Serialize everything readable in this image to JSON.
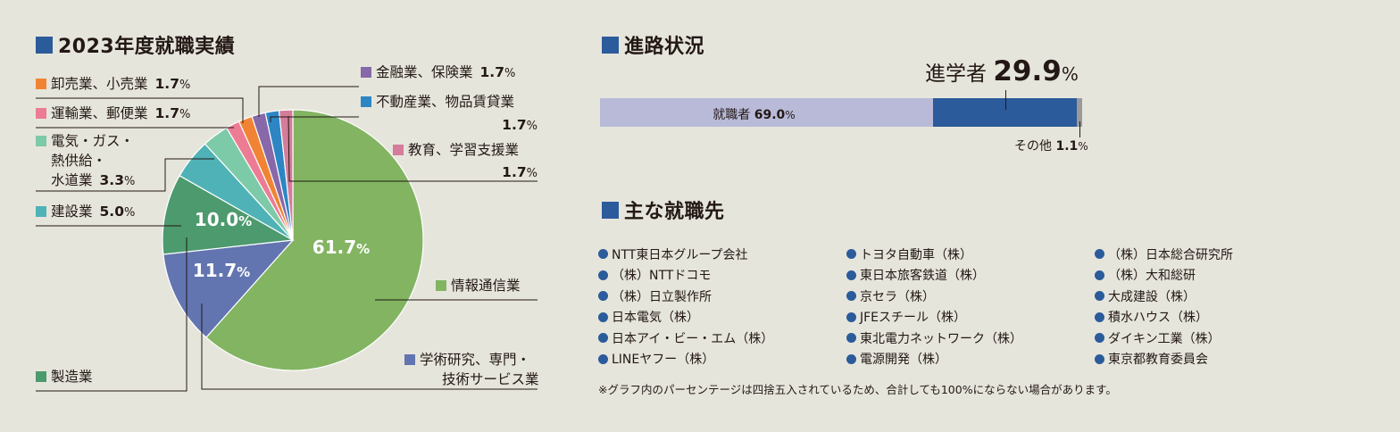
{
  "left_section": {
    "title": "2023年度就職実績",
    "accent": "#2b5b9a"
  },
  "right_section": {
    "title": "進路状況",
    "accent": "#2b5b9a"
  },
  "employers_section": {
    "title": "主な就職先",
    "accent": "#2b5b9a",
    "dot_color": "#2b5b9a",
    "columns": [
      [
        "NTT東日本グループ会社",
        "（株）NTTドコモ",
        "（株）日立製作所",
        "日本電気（株）",
        "日本アイ・ビー・エム（株）",
        "LINEヤフー（株）"
      ],
      [
        "トヨタ自動車（株）",
        "東日本旅客鉄道（株）",
        "京セラ（株）",
        "JFEスチール（株）",
        "東北電力ネットワーク（株）",
        "電源開発（株）"
      ],
      [
        "（株）日本総合研究所",
        "（株）大和総研",
        "大成建設（株）",
        "積水ハウス（株）",
        "ダイキン工業（株）",
        "東京都教育委員会"
      ]
    ],
    "note": "※グラフ内のパーセンテージは四捨五入されているため、合計しても100%にならない場合があります。"
  },
  "chart_data": [
    {
      "type": "pie",
      "title": "2023年度就職実績",
      "start": "12 o'clock, clockwise",
      "slices": [
        {
          "name": "情報通信業",
          "value": 61.7,
          "color": "#82b462",
          "label": "",
          "inside_label": "61.7",
          "unit": "%"
        },
        {
          "name": "学術研究、専門・技術サービス業",
          "value": 11.7,
          "color": "#6275b0",
          "label": "",
          "inside_label": "11.7",
          "unit": "%"
        },
        {
          "name": "製造業",
          "value": 10.0,
          "color": "#4c9a6e",
          "label": "",
          "inside_label": "10.0",
          "unit": "%"
        },
        {
          "name": "建設業",
          "value": 5.0,
          "color": "#4fb2b6",
          "label": "5.0",
          "unit": "%"
        },
        {
          "name": "電気・ガス・熱供給・水道業",
          "value": 3.3,
          "color": "#7dcaa8",
          "label": "3.3",
          "unit": "%"
        },
        {
          "name": "運輸業、郵便業",
          "value": 1.7,
          "color": "#ec7c94",
          "label": "1.7",
          "unit": "%"
        },
        {
          "name": "卸売業、小売業",
          "value": 1.7,
          "color": "#f08434",
          "label": "1.7",
          "unit": "%"
        },
        {
          "name": "金融業、保険業",
          "value": 1.7,
          "color": "#8768a8",
          "label": "1.7",
          "unit": "%"
        },
        {
          "name": "不動産業、物品賃貸業",
          "value": 1.7,
          "color": "#2d86c3",
          "label": "1.7",
          "unit": "%"
        },
        {
          "name": "教育、学習支援業",
          "value": 1.7,
          "color": "#d47c9a",
          "label": "1.7",
          "unit": "%"
        }
      ],
      "legend": {
        "wholesale": [
          "卸売業、小売業"
        ],
        "transport": [
          "運輸業、郵便業"
        ],
        "utilities": [
          "電気・ガス・",
          "熱供給・",
          "水道業"
        ],
        "construction": [
          "建設業"
        ],
        "manufacturing": [
          "製造業"
        ],
        "finance": [
          "金融業、保険業"
        ],
        "realestate": [
          "不動産業、物品賃貸業"
        ],
        "education": [
          "教育、学習支援業"
        ],
        "it": [
          "情報通信業"
        ],
        "research": [
          "学術研究、専門・",
          "技術サービス業"
        ]
      }
    },
    {
      "type": "bar",
      "orientation": "horizontal stacked",
      "title": "進路状況",
      "series": [
        {
          "name": "就職者",
          "value": 69.0,
          "unit": "%",
          "color": "#b8bad8"
        },
        {
          "name": "進学者",
          "value": 29.9,
          "unit": "%",
          "color": "#2b5b9a"
        },
        {
          "name": "その他",
          "value": 1.1,
          "unit": "%",
          "color": "#9a9a9a"
        }
      ]
    }
  ]
}
